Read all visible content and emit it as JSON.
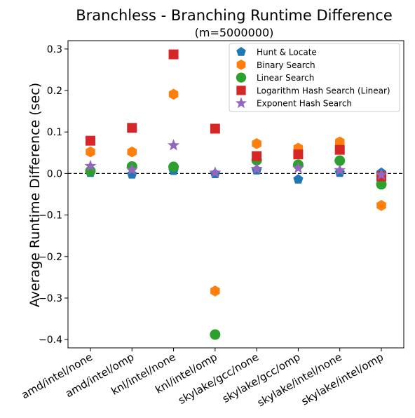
{
  "chart_data": {
    "type": "scatter",
    "title": "Branchless - Branching Runtime Difference",
    "subtitle": "(m=5000000)",
    "xlabel": "",
    "ylabel": "Average Runtime Difference (sec)",
    "ylim": [
      -0.42,
      0.32
    ],
    "yticks": [
      0.3,
      0.2,
      0.1,
      0.0,
      -0.1,
      -0.2,
      -0.3,
      -0.4
    ],
    "ytick_labels": [
      "0.3",
      "0.2",
      "0.1",
      "0.0",
      "−0.1",
      "−0.2",
      "−0.3",
      "−0.4"
    ],
    "categories": [
      "amd/intel/none",
      "amd/intel/omp",
      "knl/intel/none",
      "knl/intel/omp",
      "skylake/gcc/none",
      "skylake/gcc/omp",
      "skylake/intel/none",
      "skylake/intel/omp"
    ],
    "zero_line": "dashed",
    "legend_position": "upper-right",
    "series": [
      {
        "name": "Hunt & Locate",
        "marker": "pentagon",
        "color": "#1f77b4",
        "values": [
          0.002,
          -0.002,
          0.007,
          -0.001,
          0.008,
          -0.014,
          0.002,
          0.002
        ]
      },
      {
        "name": "Binary Search",
        "marker": "hexagon",
        "color": "#ff7f0e",
        "values": [
          0.052,
          0.052,
          0.191,
          -0.283,
          0.072,
          0.061,
          0.076,
          -0.077
        ]
      },
      {
        "name": "Linear Search",
        "marker": "circle",
        "color": "#2ca02c",
        "values": [
          0.006,
          0.017,
          0.016,
          -0.388,
          0.032,
          0.021,
          0.031,
          -0.026
        ]
      },
      {
        "name": "Logarithm Hash Search (Linear)",
        "marker": "square",
        "color": "#d62728",
        "values": [
          0.079,
          0.11,
          0.287,
          0.108,
          0.042,
          0.046,
          0.057,
          -0.007
        ]
      },
      {
        "name": "Exponent Hash Search",
        "marker": "star",
        "color": "#9467bd",
        "values": [
          0.018,
          0.009,
          0.068,
          0.002,
          0.011,
          0.013,
          0.008,
          -0.003
        ]
      }
    ]
  }
}
